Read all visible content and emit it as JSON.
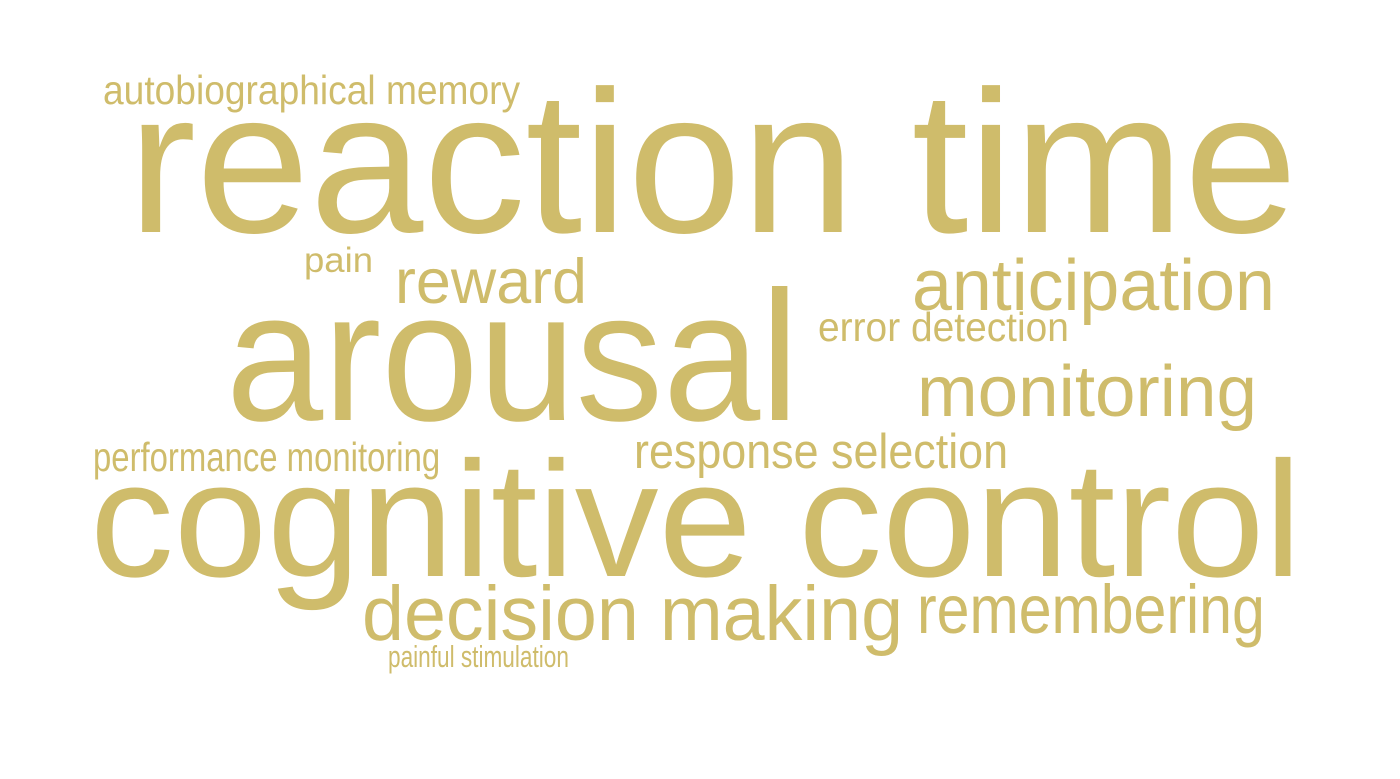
{
  "style": {
    "word_color": "#cfbc6b",
    "background": "#ffffff"
  },
  "words": [
    {
      "text": "reaction time"
    },
    {
      "text": "arousal"
    },
    {
      "text": "cognitive control"
    },
    {
      "text": "autobiographical memory"
    },
    {
      "text": "pain"
    },
    {
      "text": "reward"
    },
    {
      "text": "anticipation"
    },
    {
      "text": "error detection"
    },
    {
      "text": "monitoring"
    },
    {
      "text": "performance monitoring"
    },
    {
      "text": "response selection"
    },
    {
      "text": "decision making"
    },
    {
      "text": "remembering"
    },
    {
      "text": "painful stimulation"
    }
  ]
}
